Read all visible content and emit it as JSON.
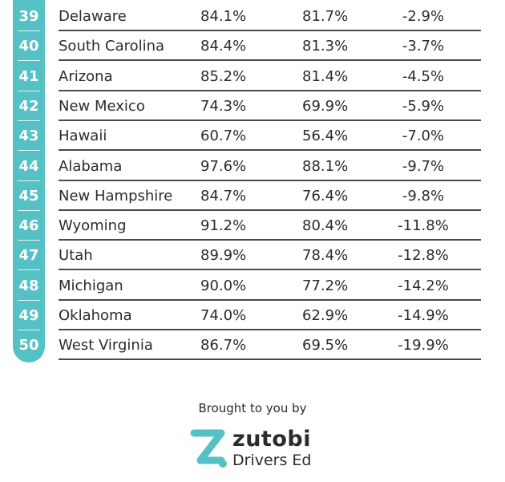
{
  "colors": {
    "accent": "#55c1c4",
    "text": "#2b2b2b",
    "rule": "#4a4a4a"
  },
  "chart_data": {
    "type": "table",
    "columns": [
      "rank",
      "state",
      "value_1",
      "value_2",
      "change"
    ],
    "rows": [
      {
        "rank": "39",
        "state": "Delaware",
        "v1": "84.1%",
        "v2": "81.7%",
        "change": "-2.9%"
      },
      {
        "rank": "40",
        "state": "South Carolina",
        "v1": "84.4%",
        "v2": "81.3%",
        "change": "-3.7%"
      },
      {
        "rank": "41",
        "state": "Arizona",
        "v1": "85.2%",
        "v2": "81.4%",
        "change": "-4.5%"
      },
      {
        "rank": "42",
        "state": "New Mexico",
        "v1": "74.3%",
        "v2": "69.9%",
        "change": "-5.9%"
      },
      {
        "rank": "43",
        "state": "Hawaii",
        "v1": "60.7%",
        "v2": "56.4%",
        "change": "-7.0%"
      },
      {
        "rank": "44",
        "state": "Alabama",
        "v1": "97.6%",
        "v2": "88.1%",
        "change": "-9.7%"
      },
      {
        "rank": "45",
        "state": "New Hampshire",
        "v1": "84.7%",
        "v2": "76.4%",
        "change": "-9.8%"
      },
      {
        "rank": "46",
        "state": "Wyoming",
        "v1": "91.2%",
        "v2": "80.4%",
        "change": "-11.8%"
      },
      {
        "rank": "47",
        "state": "Utah",
        "v1": "89.9%",
        "v2": "78.4%",
        "change": "-12.8%"
      },
      {
        "rank": "48",
        "state": "Michigan",
        "v1": "90.0%",
        "v2": "77.2%",
        "change": "-14.2%"
      },
      {
        "rank": "49",
        "state": "Oklahoma",
        "v1": "74.0%",
        "v2": "62.9%",
        "change": "-14.9%"
      },
      {
        "rank": "50",
        "state": "West Virginia",
        "v1": "86.7%",
        "v2": "69.5%",
        "change": "-19.9%"
      }
    ]
  },
  "footer": {
    "brought_text": "Brought to you by",
    "logo_icon": "zutobi-z-logo-icon",
    "brand_name": "zutobi",
    "brand_sub": "Drivers Ed"
  }
}
